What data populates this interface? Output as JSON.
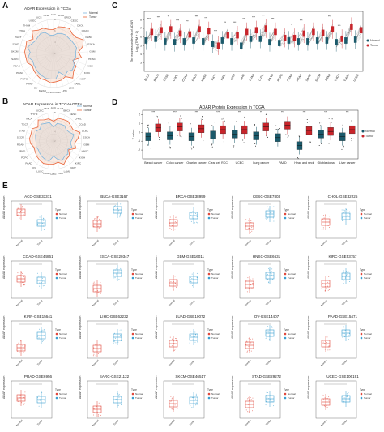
{
  "panels": {
    "a": {
      "label": "A",
      "title": "ADAR Expression in TCGA",
      "legend": [
        "Normal",
        "Tumor"
      ],
      "categories": [
        "ACC",
        "BLCA",
        "BRCA",
        "CESC",
        "CHOL",
        "COAD",
        "DLBC",
        "ESCA",
        "GBM",
        "HNSC",
        "KICH",
        "KIRC",
        "KIRP",
        "LAML",
        "LGG",
        "LIHC",
        "LUAD",
        "LUSC",
        "MESO",
        "OV",
        "PAAD",
        "PCPG",
        "PRAD",
        "READ",
        "SARC",
        "SKCM",
        "STAD",
        "TGCT",
        "THCA",
        "THYM",
        "UCEC",
        "UCS",
        "UVM"
      ],
      "normal": [
        5.2,
        5.6,
        5.8,
        5.9,
        5.8,
        5.9,
        6.0,
        6.2,
        5.9,
        6.0,
        5.7,
        6.2,
        6.4,
        6.0,
        6.4,
        5.4,
        6.5,
        6.5,
        6.6,
        6.4,
        6.3,
        6.1,
        6.0,
        5.9,
        6.5,
        6.1,
        6.7,
        6.2,
        5.9,
        6.0,
        6.2,
        6.0,
        5.3
      ],
      "tumor": [
        6.2,
        6.8,
        7.0,
        7.2,
        6.8,
        6.9,
        7.8,
        7.3,
        6.4,
        7.0,
        5.6,
        6.6,
        6.7,
        7.5,
        6.6,
        6.9,
        7.0,
        7.2,
        6.9,
        7.0,
        6.8,
        6.6,
        6.3,
        6.9,
        6.9,
        7.1,
        7.0,
        7.2,
        6.4,
        7.5,
        6.9,
        6.8,
        6.3
      ]
    },
    "b": {
      "label": "B",
      "title": "ADAR Expression in TCGA+GTEx",
      "legend": [
        "Normal",
        "Tumor"
      ],
      "categories": [
        "ACC",
        "BLCA",
        "BRCA",
        "CESC",
        "CHOL",
        "COAD",
        "DLBC",
        "ESCA",
        "GBM",
        "HNSC",
        "KICH",
        "KIRC",
        "KIRP",
        "LAML",
        "LGG",
        "LIHC",
        "LUAD",
        "LUSC",
        "OV",
        "PAAD",
        "PCPG",
        "PRAD",
        "READ",
        "SKCM",
        "STAD",
        "TGCT",
        "THCA",
        "THYM",
        "UCEC",
        "UCS"
      ],
      "normal": [
        5.0,
        5.8,
        5.9,
        6.0,
        5.6,
        5.8,
        6.5,
        6.0,
        5.6,
        6.1,
        5.5,
        6.1,
        6.0,
        6.5,
        5.9,
        5.2,
        6.3,
        6.3,
        6.1,
        5.9,
        5.7,
        5.9,
        5.7,
        5.8,
        6.0,
        6.2,
        5.8,
        6.4,
        6.1,
        6.0
      ],
      "tumor": [
        6.2,
        6.9,
        7.0,
        7.2,
        6.9,
        6.8,
        7.9,
        7.2,
        6.5,
        7.0,
        5.7,
        6.6,
        6.7,
        7.4,
        6.6,
        6.9,
        7.0,
        7.2,
        7.0,
        6.8,
        6.5,
        6.3,
        6.9,
        7.1,
        7.0,
        7.2,
        6.4,
        7.5,
        6.9,
        6.8
      ]
    },
    "c": {
      "label": "C",
      "ylabel": "The expression levels of ADAR\nLog₂ (TPM + 1)",
      "legend": [
        "Normal",
        "Tumor"
      ],
      "categories": [
        "BLCA",
        "BRCA",
        "CESC",
        "CHOL",
        "COAD",
        "ESCA",
        "HNSC",
        "KICH",
        "KIRC",
        "KIRP",
        "LIHC",
        "LUAD",
        "LUSC",
        "PAAD",
        "PCPG",
        "PRAD",
        "READ",
        "SARC",
        "SKCM",
        "STAD",
        "THCA",
        "THYM",
        "UCEC"
      ],
      "normal": [
        5.6,
        5.8,
        5.5,
        5.4,
        5.5,
        5.6,
        5.5,
        5.2,
        5.6,
        5.5,
        5.0,
        5.8,
        5.8,
        5.4,
        5.3,
        5.6,
        5.5,
        5.5,
        5.6,
        5.6,
        5.4,
        5.6,
        5.7
      ],
      "tumor": [
        6.6,
        6.8,
        6.9,
        6.4,
        6.3,
        6.9,
        6.7,
        5.0,
        6.2,
        6.2,
        6.6,
        6.8,
        7.0,
        6.6,
        5.9,
        5.9,
        6.4,
        6.6,
        6.5,
        6.9,
        5.8,
        7.2,
        6.8
      ],
      "sig": [
        "***",
        "***",
        "*",
        "***",
        "***",
        "***",
        "***",
        "***",
        "**",
        "***",
        "***",
        "***",
        "***",
        "***",
        "",
        "*",
        "***",
        "",
        "",
        "***",
        "***",
        "",
        ""
      ]
    },
    "d": {
      "label": "D",
      "title": "ADAR Protein Expression in TCGA",
      "ylabel": "Z-value",
      "legend": [
        "Normal",
        "Tumor"
      ],
      "categories": [
        "Breast cancer",
        "Colon cancer",
        "Ovarian cancer",
        "Clear cell RCC",
        "UCEC",
        "Lung cancer",
        "PAAD",
        "Head and neck",
        "Glioblastoma",
        "Liver cancer"
      ],
      "normal": [
        -0.5,
        -0.4,
        -0.5,
        -0.3,
        -0.2,
        -0.4,
        -0.6,
        -1.5,
        -0.2,
        -0.5
      ],
      "tumor": [
        0.5,
        0.6,
        0.4,
        0.3,
        0.3,
        0.6,
        0.8,
        0.2,
        0.1,
        0.3
      ],
      "sig": [
        "***",
        "***",
        "***",
        "***",
        "***",
        "**",
        "***",
        "***",
        "***",
        "***"
      ]
    },
    "e": {
      "label": "E",
      "ylabel": "ADAR expression",
      "legend_title": "Type",
      "legend": [
        "Normal",
        "Tumor"
      ],
      "xlabels": [
        "Normal",
        "Tumor"
      ],
      "charts": [
        {
          "title": "ACC-GSE33371",
          "normal": 1.0,
          "tumor": -0.3
        },
        {
          "title": "BLCA-GSE3167",
          "normal": -0.4,
          "tumor": 1.3
        },
        {
          "title": "BRCA-GSE38959",
          "normal": -0.3,
          "tumor": 0.6
        },
        {
          "title": "CESC-GSE7803",
          "normal": -0.7,
          "tumor": 0.8
        },
        {
          "title": "CHOL-GSE32225",
          "normal": -0.2,
          "tumor": 0.5
        },
        {
          "title": "COAD-GSE44861",
          "normal": 0.2,
          "tumor": 0.0
        },
        {
          "title": "ESCA-GSE20347",
          "normal": -1.0,
          "tumor": 0.9
        },
        {
          "title": "GBM-GSE16011",
          "normal": -0.3,
          "tumor": 0.1
        },
        {
          "title": "HNSC-GSE6631",
          "normal": -0.5,
          "tumor": 0.6
        },
        {
          "title": "KIRC-GSE53757",
          "normal": -0.4,
          "tumor": 0.5
        },
        {
          "title": "KIRP-GSE15641",
          "normal": -0.9,
          "tumor": 0.6
        },
        {
          "title": "LIHC-GSE62232",
          "normal": -1.0,
          "tumor": 0.4
        },
        {
          "title": "LUAD-GSE10072",
          "normal": -0.4,
          "tumor": 0.4
        },
        {
          "title": "OV-GSE14407",
          "normal": -0.6,
          "tumor": 0.9
        },
        {
          "title": "PAAD-GSE15471",
          "normal": -0.4,
          "tumor": 0.9
        },
        {
          "title": "PRAD-GSE6956",
          "normal": 0.3,
          "tumor": 0.1
        },
        {
          "title": "SARC-GSE21122",
          "normal": -1.1,
          "tumor": 0.1
        },
        {
          "title": "SKCM-GSE46517",
          "normal": -0.4,
          "tumor": 0.0
        },
        {
          "title": "STAD-GSE29272",
          "normal": -0.5,
          "tumor": 0.2
        },
        {
          "title": "UCEC-GSE106191",
          "normal": -0.2,
          "tumor": 0.2
        }
      ]
    }
  },
  "colors": {
    "normal": "#3a9fd0",
    "tumor": "#e0483c",
    "normal_dark": "#1b5a6b",
    "tumor_dark": "#c8242a",
    "radar_normal": "#7fb6dd",
    "radar_tumor": "#e9653a"
  }
}
